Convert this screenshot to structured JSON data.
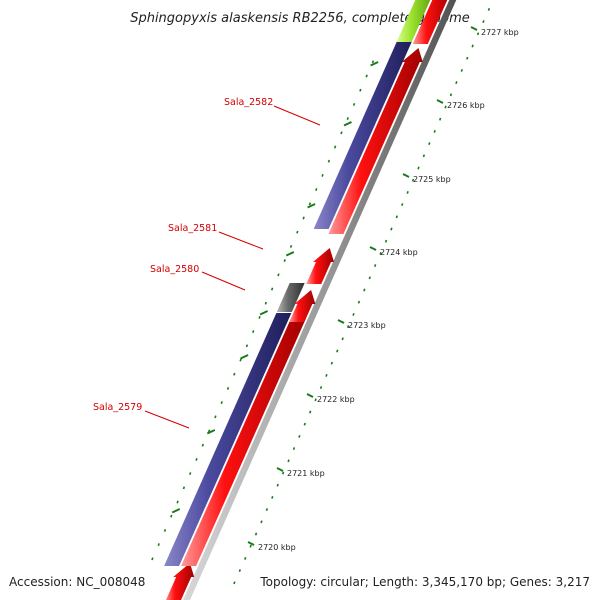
{
  "title": "Sphingopyxis alaskensis RB2256, complete genome",
  "ticks": [
    {
      "label": "2727 kbp"
    },
    {
      "label": "2726 kbp"
    },
    {
      "label": "2725 kbp"
    },
    {
      "label": "2724 kbp"
    },
    {
      "label": "2723 kbp"
    },
    {
      "label": "2722 kbp"
    },
    {
      "label": "2721 kbp"
    },
    {
      "label": "2720 kbp"
    }
  ],
  "genes": [
    {
      "label": "Sala_2582"
    },
    {
      "label": "Sala_2581"
    },
    {
      "label": "Sala_2580"
    },
    {
      "label": "Sala_2579"
    }
  ],
  "footer": {
    "accession": "Accession: NC_008048",
    "stats": "Topology: circular; Length: 3,345,170 bp; Genes: 3,217"
  },
  "colors": {
    "forward_cds": "#ff0000",
    "reverse_cds": "#4a4a9e",
    "other_feature": "#666666",
    "highlight": "#9be22d",
    "tick": "#1a7a1a",
    "label": "#d40000"
  }
}
